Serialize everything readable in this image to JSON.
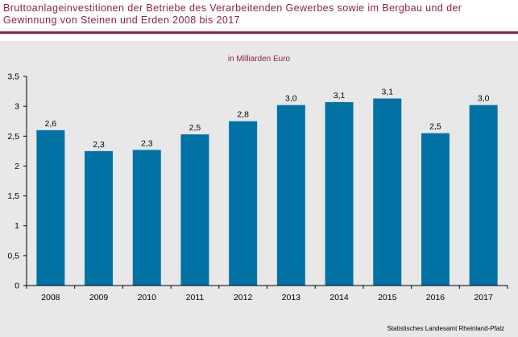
{
  "header": {
    "title": "Bruttoanlageinvestitionen der Betriebe des Verarbeitenden Gewerbes sowie im Bergbau und der Gewinnung von Steinen und Erden 2008 bis 2017"
  },
  "source": "Statistisches Landesamt Rheinland-Pfalz",
  "colors": {
    "bar": "#0272a4",
    "title": "#8b2240",
    "panel": "#e8e8e8"
  },
  "chart_data": {
    "type": "bar",
    "title": "in Milliarden Euro",
    "categories": [
      "2008",
      "2009",
      "2010",
      "2011",
      "2012",
      "2013",
      "2014",
      "2015",
      "2016",
      "2017"
    ],
    "values": [
      2.6,
      2.25,
      2.27,
      2.53,
      2.75,
      3.02,
      3.07,
      3.13,
      2.55,
      3.02
    ],
    "data_labels": [
      "2,6",
      "2,3",
      "2,3",
      "2,5",
      "2,8",
      "3,0",
      "3,1",
      "3,1",
      "2,5",
      "3,0"
    ],
    "y_ticks": [
      0,
      0.5,
      1,
      1.5,
      2,
      2.5,
      3,
      3.5
    ],
    "y_tick_labels": [
      "0",
      "0,5",
      "1",
      "1,5",
      "2",
      "2,5",
      "3",
      "3,5"
    ],
    "ylim": [
      0,
      3.5
    ],
    "grid": false,
    "legend": "none"
  }
}
